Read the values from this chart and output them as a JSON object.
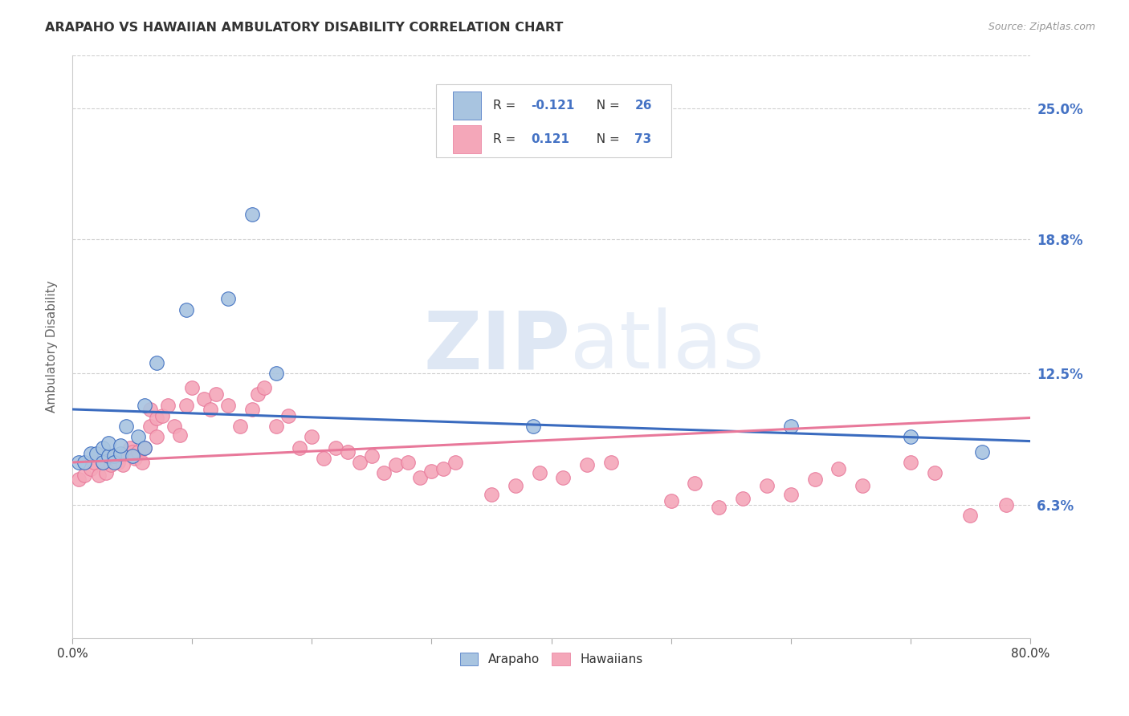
{
  "title": "ARAPAHO VS HAWAIIAN AMBULATORY DISABILITY CORRELATION CHART",
  "source": "Source: ZipAtlas.com",
  "ylabel": "Ambulatory Disability",
  "ytick_labels": [
    "6.3%",
    "12.5%",
    "18.8%",
    "25.0%"
  ],
  "ytick_values": [
    0.063,
    0.125,
    0.188,
    0.25
  ],
  "xmin": 0.0,
  "xmax": 0.8,
  "ymin": 0.0,
  "ymax": 0.275,
  "arapaho_color": "#a8c4e0",
  "hawaiian_color": "#f4a7b9",
  "arapaho_line_color": "#3a6bbf",
  "hawaiian_line_color": "#e8789a",
  "arapaho_R": -0.121,
  "arapaho_N": 26,
  "hawaiian_R": 0.121,
  "hawaiian_N": 73,
  "watermark_zip": "ZIP",
  "watermark_atlas": "atlas",
  "grid_color": "#d0d0d0",
  "title_color": "#333333",
  "axis_label_color": "#666666",
  "right_ytick_color": "#4472c4",
  "arapaho_scatter_x": [
    0.005,
    0.01,
    0.015,
    0.02,
    0.025,
    0.025,
    0.03,
    0.03,
    0.035,
    0.035,
    0.04,
    0.04,
    0.045,
    0.05,
    0.055,
    0.06,
    0.06,
    0.07,
    0.095,
    0.13,
    0.15,
    0.17,
    0.385,
    0.6,
    0.7,
    0.76
  ],
  "arapaho_scatter_y": [
    0.083,
    0.083,
    0.087,
    0.087,
    0.083,
    0.09,
    0.086,
    0.092,
    0.086,
    0.083,
    0.087,
    0.091,
    0.1,
    0.086,
    0.095,
    0.11,
    0.09,
    0.13,
    0.155,
    0.16,
    0.2,
    0.125,
    0.1,
    0.1,
    0.095,
    0.088
  ],
  "hawaiian_scatter_x": [
    0.005,
    0.01,
    0.015,
    0.018,
    0.022,
    0.025,
    0.028,
    0.03,
    0.032,
    0.035,
    0.038,
    0.04,
    0.042,
    0.045,
    0.048,
    0.05,
    0.052,
    0.055,
    0.058,
    0.06,
    0.065,
    0.065,
    0.07,
    0.07,
    0.075,
    0.08,
    0.085,
    0.09,
    0.095,
    0.1,
    0.11,
    0.115,
    0.12,
    0.13,
    0.14,
    0.15,
    0.155,
    0.16,
    0.17,
    0.18,
    0.19,
    0.2,
    0.21,
    0.22,
    0.23,
    0.24,
    0.25,
    0.26,
    0.27,
    0.28,
    0.29,
    0.3,
    0.31,
    0.32,
    0.35,
    0.37,
    0.39,
    0.41,
    0.43,
    0.45,
    0.5,
    0.52,
    0.54,
    0.56,
    0.58,
    0.6,
    0.62,
    0.64,
    0.66,
    0.7,
    0.72,
    0.75,
    0.78
  ],
  "hawaiian_scatter_y": [
    0.075,
    0.077,
    0.08,
    0.083,
    0.077,
    0.083,
    0.078,
    0.086,
    0.082,
    0.085,
    0.083,
    0.086,
    0.082,
    0.087,
    0.09,
    0.088,
    0.085,
    0.088,
    0.083,
    0.09,
    0.1,
    0.108,
    0.095,
    0.104,
    0.105,
    0.11,
    0.1,
    0.096,
    0.11,
    0.118,
    0.113,
    0.108,
    0.115,
    0.11,
    0.1,
    0.108,
    0.115,
    0.118,
    0.1,
    0.105,
    0.09,
    0.095,
    0.085,
    0.09,
    0.088,
    0.083,
    0.086,
    0.078,
    0.082,
    0.083,
    0.076,
    0.079,
    0.08,
    0.083,
    0.068,
    0.072,
    0.078,
    0.076,
    0.082,
    0.083,
    0.065,
    0.073,
    0.062,
    0.066,
    0.072,
    0.068,
    0.075,
    0.08,
    0.072,
    0.083,
    0.078,
    0.058,
    0.063
  ],
  "arapaho_trend_x": [
    0.0,
    0.8
  ],
  "arapaho_trend_y_start": 0.108,
  "arapaho_trend_y_end": 0.093,
  "hawaiian_trend_y_start": 0.083,
  "hawaiian_trend_y_end": 0.104
}
